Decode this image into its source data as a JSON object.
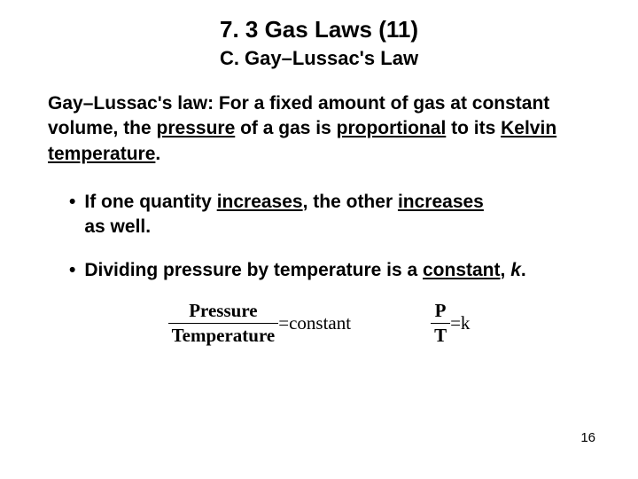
{
  "title": "7. 3   Gas Laws (11)",
  "subtitle": "C.  Gay–Lussac's Law",
  "definition_parts": {
    "p1": "Gay–Lussac's law: For a fixed amount of gas at constant volume, the ",
    "p2_u": "pressure",
    "p3": " of a gas is ",
    "p4_u": "proportional",
    "p5": " to its ",
    "p6_u": "Kelvin temperature",
    "p7": "."
  },
  "bullets": {
    "dot": "•",
    "b1": {
      "p1": "If one quantity ",
      "p2_u": "increases",
      "p3": ", the other ",
      "p4_u": "increases",
      "p5": " as well."
    },
    "b2": {
      "p1": "Dividing pressure by temperature is a ",
      "p2_u": "constant",
      "p3": ", ",
      "p4_i": "k",
      "p5": "."
    }
  },
  "formula1": {
    "num": "Pressure",
    "den": "Temperature",
    "eq": " = ",
    "rhs": "constant"
  },
  "formula2": {
    "num": "P",
    "den": "T",
    "eq": " = ",
    "rhs": "k"
  },
  "pagenum": "16",
  "colors": {
    "bg": "#ffffff",
    "text": "#000000"
  },
  "fonts": {
    "body": "Arial",
    "formula": "Times New Roman"
  }
}
